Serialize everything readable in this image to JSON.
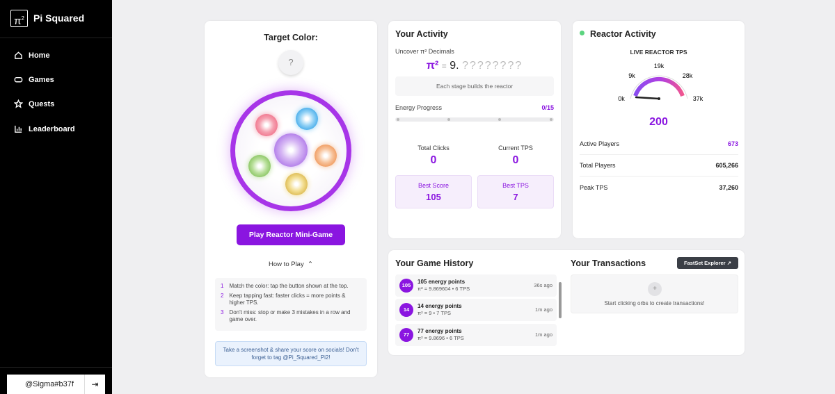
{
  "sidebar": {
    "logo_symbol": "π",
    "logo_exp": "2",
    "brand": "Pi Squared",
    "nav": [
      "Home",
      "Games",
      "Quests",
      "Leaderboard"
    ],
    "user": "@Sigma#b37f"
  },
  "game": {
    "title": "Target Color:",
    "target": "?",
    "button": "Play Reactor Mini-Game",
    "how_to_play": "How to Play",
    "steps": [
      {
        "number": "1",
        "text": "Match the color: tap the button shown at the top."
      },
      {
        "number": "2",
        "text": "Keep tapping fast: faster clicks = more points & higher TPS."
      },
      {
        "number": "3",
        "text": "Don't miss: stop or make 3 mistakes in a row and game over."
      }
    ],
    "note": "Take a screenshot & share your score on socials! Don't forget to tag @Pi_Squared_Pi2!"
  },
  "activity": {
    "title": "Your Activity",
    "subtitle": "Uncover π² Decimals",
    "formula_symbol": "π²",
    "formula_eq": "=",
    "formula_int": "9",
    "formula_dot": ".",
    "formula_decimals": "????????",
    "stage_note": "Each stage builds the reactor",
    "progress_label": "Energy Progress",
    "progress_value": "0/15",
    "stats": [
      {
        "label": "Total Clicks",
        "value": "0"
      },
      {
        "label": "Current TPS",
        "value": "0"
      },
      {
        "label": "Best Score",
        "value": "105"
      },
      {
        "label": "Best TPS",
        "value": "7"
      }
    ]
  },
  "reactor": {
    "title": "Reactor Activity",
    "gauge_title": "LIVE REACTOR TPS",
    "gauge_labels": [
      "0k",
      "9k",
      "19k",
      "28k",
      "37k"
    ],
    "gauge_value": "200",
    "rows": [
      {
        "label": "Active Players",
        "value": "673"
      },
      {
        "label": "Total Players",
        "value": "605,266"
      },
      {
        "label": "Peak TPS",
        "value": "37,260"
      }
    ]
  },
  "history": {
    "title": "Your Game History",
    "entries": [
      {
        "badge": "105",
        "points": "105 energy points",
        "detail": "π² = 9.869604 • 6 TPS",
        "time": "36s ago"
      },
      {
        "badge": "14",
        "points": "14 energy points",
        "detail": "π² = 9 • 7 TPS",
        "time": "1m ago"
      },
      {
        "badge": "77",
        "points": "77 energy points",
        "detail": "π² = 9.8696 • 6 TPS",
        "time": "1m ago"
      }
    ]
  },
  "transactions": {
    "title": "Your Transactions",
    "explorer": "FastSet Explorer",
    "icon": "+",
    "empty": "Start clicking orbs to create transactions!"
  }
}
